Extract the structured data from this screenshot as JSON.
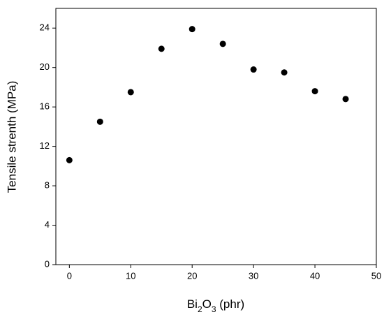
{
  "chart_data": {
    "type": "scatter",
    "x_label": "Bi2O3 (phr)",
    "y_label": "Tensile strenth (MPa)",
    "x": [
      0,
      5,
      10,
      15,
      20,
      25,
      30,
      35,
      40,
      45
    ],
    "values": [
      10.6,
      14.5,
      17.5,
      21.9,
      23.9,
      22.4,
      19.8,
      19.5,
      17.6,
      16.8
    ],
    "color": "#000000",
    "xlim": [
      -2.2,
      50
    ],
    "xticks": [
      0,
      10,
      20,
      30,
      40,
      50
    ],
    "ylim": [
      0,
      26
    ],
    "yticks": [
      0,
      4,
      8,
      12,
      16,
      20,
      24
    ],
    "grid": false
  }
}
